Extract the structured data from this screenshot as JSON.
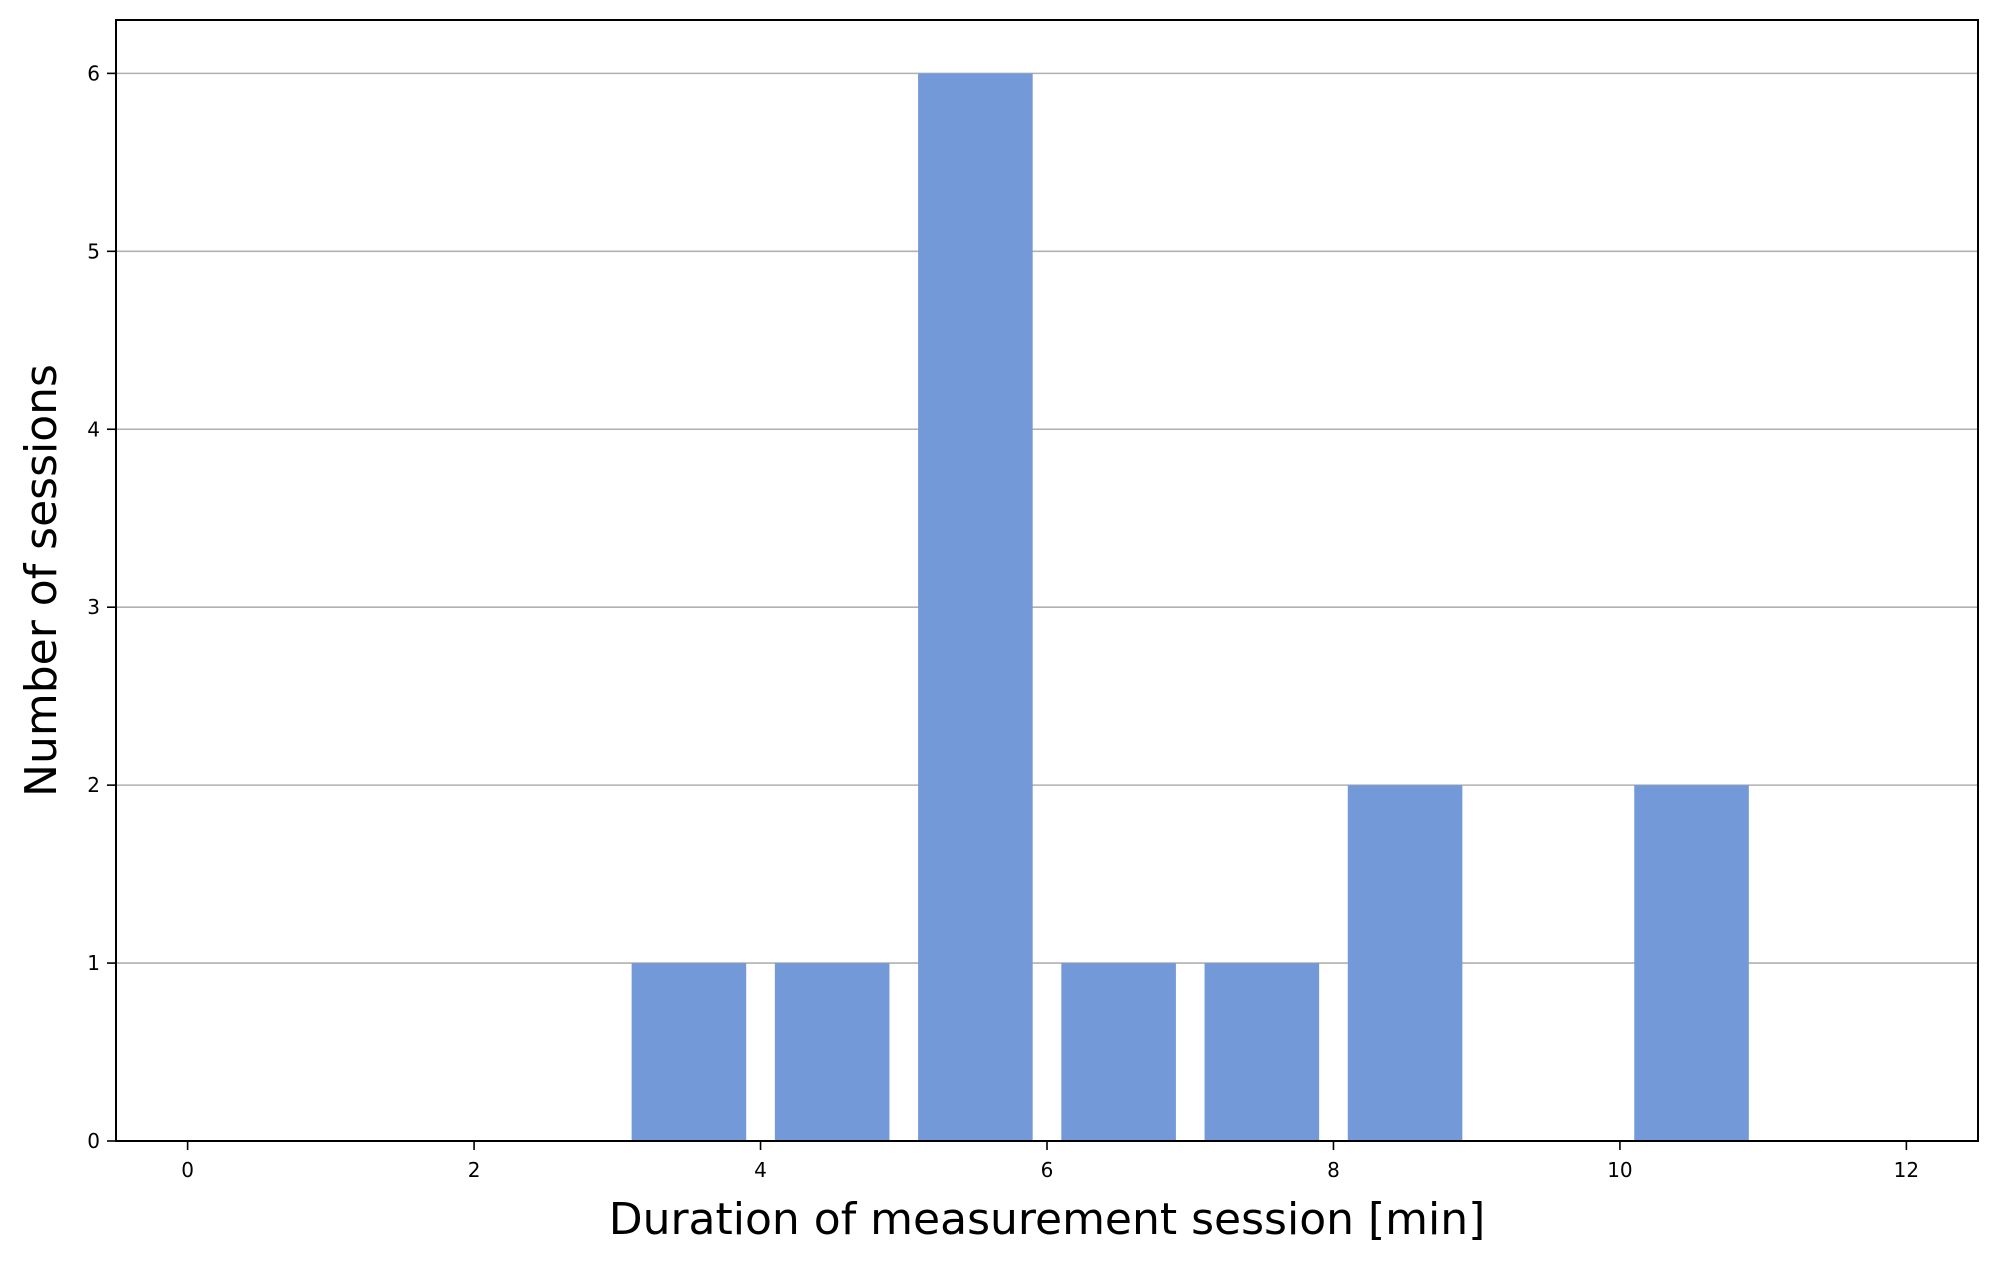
{
  "chart_data": {
    "type": "bar",
    "title": "",
    "xlabel": "Duration of measurement session [min]",
    "ylabel": "Number of sessions",
    "bars": [
      {
        "x_start": 3,
        "x_end": 4,
        "value": 1
      },
      {
        "x_start": 4,
        "x_end": 5,
        "value": 1
      },
      {
        "x_start": 5,
        "x_end": 6,
        "value": 6
      },
      {
        "x_start": 6,
        "x_end": 7,
        "value": 1
      },
      {
        "x_start": 7,
        "x_end": 8,
        "value": 1
      },
      {
        "x_start": 8,
        "x_end": 9,
        "value": 2
      },
      {
        "x_start": 10,
        "x_end": 11,
        "value": 2
      }
    ],
    "xlim": [
      -0.5,
      12.5
    ],
    "ylim": [
      0,
      6.3
    ],
    "xticks": [
      0,
      2,
      4,
      6,
      8,
      10,
      12
    ],
    "yticks": [
      0,
      1,
      2,
      3,
      4,
      5,
      6
    ],
    "grid": "y-major",
    "bar_color": "#7499d8",
    "grid_color": "#b0b0b0"
  }
}
